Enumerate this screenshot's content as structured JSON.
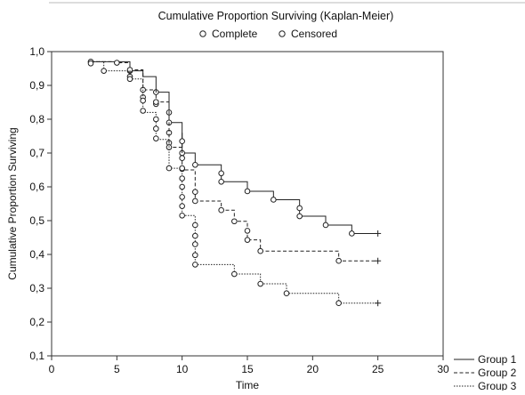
{
  "chart_data": {
    "type": "line",
    "subtype": "kaplan-meier",
    "title": "Cumulative Proportion Surviving (Kaplan-Meier)",
    "marker_legend": [
      "Complete",
      "Censored"
    ],
    "xlabel": "Time",
    "ylabel": "Cumulative Proportion Surviving",
    "xlim": [
      0,
      30
    ],
    "ylim": [
      0.1,
      1.0
    ],
    "x_ticks": [
      "0",
      "5",
      "10",
      "15",
      "20",
      "25",
      "30"
    ],
    "y_ticks": [
      "0,1",
      "0,2",
      "0,3",
      "0,4",
      "0,5",
      "0,6",
      "0,7",
      "0,8",
      "0,9",
      "1,0"
    ],
    "x_tick_values": [
      0,
      5,
      10,
      15,
      20,
      25,
      30
    ],
    "y_tick_values": [
      0.1,
      0.2,
      0.3,
      0.4,
      0.5,
      0.6,
      0.7,
      0.8,
      0.9,
      1.0
    ],
    "grid": false,
    "legend_position": "bottom-right",
    "series": [
      {
        "name": "Group  1",
        "line_style": "solid",
        "steps": [
          [
            3,
            0.97
          ],
          [
            6,
            0.943
          ],
          [
            7,
            0.926
          ],
          [
            8,
            0.88
          ],
          [
            9,
            0.79
          ],
          [
            10,
            0.7
          ],
          [
            11,
            0.665
          ],
          [
            13,
            0.615
          ],
          [
            15,
            0.587
          ],
          [
            17,
            0.562
          ],
          [
            19,
            0.513
          ],
          [
            21,
            0.487
          ],
          [
            23,
            0.462
          ],
          [
            25,
            0.462
          ]
        ],
        "markers": [
          [
            3,
            0.97
          ],
          [
            6,
            0.943
          ],
          [
            8,
            0.88
          ],
          [
            8,
            0.845
          ],
          [
            9,
            0.82
          ],
          [
            9,
            0.79
          ],
          [
            9,
            0.76
          ],
          [
            9,
            0.73
          ],
          [
            10,
            0.7
          ],
          [
            11,
            0.665
          ],
          [
            13,
            0.64
          ],
          [
            13,
            0.615
          ],
          [
            15,
            0.587
          ],
          [
            17,
            0.562
          ],
          [
            19,
            0.537
          ],
          [
            19,
            0.513
          ],
          [
            21,
            0.487
          ],
          [
            23,
            0.462
          ]
        ]
      },
      {
        "name": "Group  2",
        "line_style": "dashed",
        "steps": [
          [
            3,
            0.97
          ],
          [
            5,
            0.967
          ],
          [
            6,
            0.946
          ],
          [
            7,
            0.887
          ],
          [
            8,
            0.851
          ],
          [
            9,
            0.717
          ],
          [
            10,
            0.76
          ],
          [
            10,
            0.65
          ],
          [
            11,
            0.558
          ],
          [
            13,
            0.531
          ],
          [
            14,
            0.498
          ],
          [
            15,
            0.443
          ],
          [
            16,
            0.41
          ],
          [
            22,
            0.381
          ],
          [
            25,
            0.381
          ]
        ],
        "markers": [
          [
            3,
            0.97
          ],
          [
            5,
            0.967
          ],
          [
            6,
            0.946
          ],
          [
            6,
            0.926
          ],
          [
            7,
            0.887
          ],
          [
            7,
            0.865
          ],
          [
            8,
            0.851
          ],
          [
            9,
            0.717
          ],
          [
            10,
            0.735
          ],
          [
            10,
            0.685
          ],
          [
            10,
            0.653
          ],
          [
            11,
            0.585
          ],
          [
            11,
            0.558
          ],
          [
            13,
            0.531
          ],
          [
            14,
            0.498
          ],
          [
            15,
            0.47
          ],
          [
            15,
            0.443
          ],
          [
            16,
            0.41
          ],
          [
            22,
            0.381
          ]
        ]
      },
      {
        "name": "Group  3",
        "line_style": "dotted",
        "steps": [
          [
            3,
            0.97
          ],
          [
            4,
            0.943
          ],
          [
            6,
            0.919
          ],
          [
            7,
            0.82
          ],
          [
            8,
            0.74
          ],
          [
            9,
            0.655
          ],
          [
            10,
            0.515
          ],
          [
            11,
            0.37
          ],
          [
            14,
            0.342
          ],
          [
            16,
            0.313
          ],
          [
            18,
            0.285
          ],
          [
            22,
            0.256
          ],
          [
            25,
            0.256
          ]
        ],
        "markers": [
          [
            3,
            0.965
          ],
          [
            4,
            0.943
          ],
          [
            6,
            0.919
          ],
          [
            7,
            0.855
          ],
          [
            7,
            0.825
          ],
          [
            8,
            0.8
          ],
          [
            8,
            0.772
          ],
          [
            8,
            0.743
          ],
          [
            9,
            0.655
          ],
          [
            10,
            0.655
          ],
          [
            10,
            0.625
          ],
          [
            10,
            0.6
          ],
          [
            10,
            0.57
          ],
          [
            10,
            0.543
          ],
          [
            10,
            0.515
          ],
          [
            11,
            0.487
          ],
          [
            11,
            0.455
          ],
          [
            11,
            0.43
          ],
          [
            11,
            0.398
          ],
          [
            11,
            0.37
          ],
          [
            14,
            0.342
          ],
          [
            16,
            0.313
          ],
          [
            18,
            0.285
          ],
          [
            22,
            0.256
          ]
        ]
      }
    ]
  }
}
